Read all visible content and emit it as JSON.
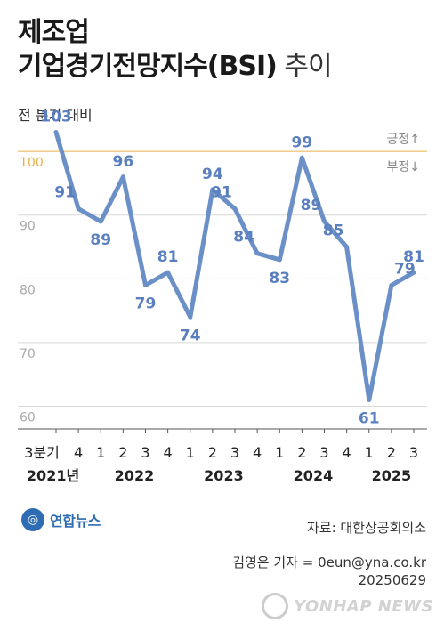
{
  "header": {
    "title_line1": "제조업",
    "title_line2_bold": "기업경기전망지수(BSI)",
    "title_line2_light": " 추이",
    "subtitle": "전 분기 대비"
  },
  "reference": {
    "label_up": "긍정↑",
    "label_down": "부정↓",
    "color": "#e8b04a"
  },
  "footer": {
    "logo_text": "연합뉴스",
    "source": "자료: 대한상공회의소",
    "credit_line1": "김영은 기자 = 0eun@yna.co.kr",
    "credit_line2": "20250629",
    "watermark": "YONHAP NEWS"
  },
  "colors": {
    "line": "#6b8fc7",
    "label": "#5a7fbe",
    "grid": "#d8d8d8",
    "axis_text": "#aaaaaa"
  },
  "chart_data": {
    "type": "line",
    "title": "제조업 기업경기전망지수(BSI) 추이",
    "subtitle": "전 분기 대비",
    "categories": [
      "3분기",
      "4",
      "1",
      "2",
      "3",
      "4",
      "1",
      "2",
      "3",
      "4",
      "1",
      "2",
      "3",
      "4",
      "1",
      "2",
      "3"
    ],
    "year_labels": [
      {
        "label": "2021년",
        "start": 0,
        "end": 1
      },
      {
        "label": "2022",
        "start": 2,
        "end": 5
      },
      {
        "label": "2023",
        "start": 6,
        "end": 9
      },
      {
        "label": "2024",
        "start": 10,
        "end": 13
      },
      {
        "label": "2025",
        "start": 14,
        "end": 16
      }
    ],
    "series": [
      {
        "values": [
          103,
          91,
          89,
          96,
          79,
          81,
          74,
          94,
          91,
          84,
          83,
          99,
          89,
          85,
          61,
          79,
          81
        ]
      }
    ],
    "y_ticks": [
      60,
      70,
      80,
      90,
      100
    ],
    "reference_line": 100,
    "ylim": [
      57,
      107
    ],
    "grid": true
  }
}
